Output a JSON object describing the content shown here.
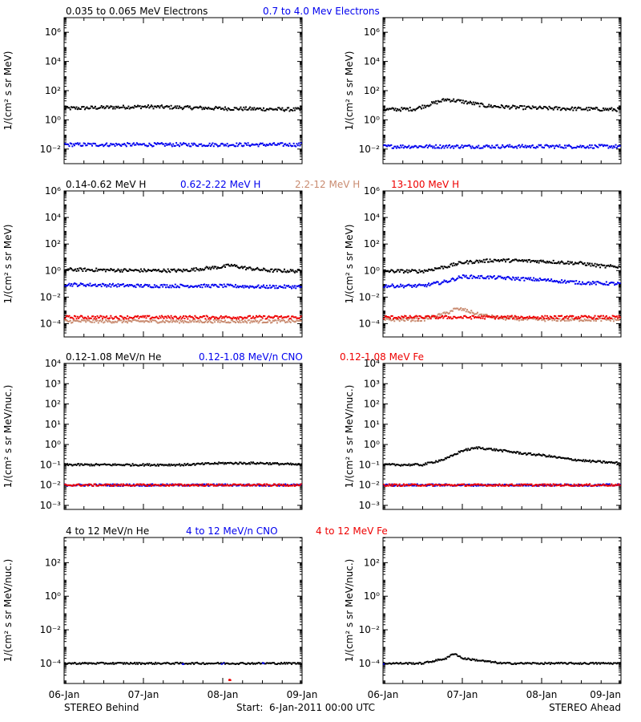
{
  "colors": {
    "black": "#000000",
    "blue": "#0000ee",
    "tan": "#c98b70",
    "red": "#ee0000"
  },
  "rows": [
    {
      "legend": [
        {
          "label": "0.035 to 0.065 MeV Electrons",
          "color": "#000000"
        },
        {
          "label": "0.7 to 4.0 Mev Electrons",
          "color": "#0000ee"
        }
      ],
      "ylabel": "1/(cm² s sr MeV)",
      "ylim_log10": [
        -3,
        7
      ],
      "ticks": [
        {
          "e": -2,
          "label": "10⁻²"
        },
        {
          "e": 0,
          "label": "10⁰"
        },
        {
          "e": 2,
          "label": "10²"
        },
        {
          "e": 4,
          "label": "10⁴"
        },
        {
          "e": 6,
          "label": "10⁶"
        }
      ]
    },
    {
      "legend": [
        {
          "label": "0.14-0.62 MeV H",
          "color": "#000000"
        },
        {
          "label": "0.62-2.22 MeV H",
          "color": "#0000ee"
        },
        {
          "label": "2.2-12 MeV H",
          "color": "#c98b70"
        },
        {
          "label": "13-100 MeV H",
          "color": "#ee0000"
        }
      ],
      "ylabel": "1/(cm² s sr MeV)",
      "ylim_log10": [
        -5,
        6
      ],
      "ticks": [
        {
          "e": -4,
          "label": "10⁻⁴"
        },
        {
          "e": -2,
          "label": "10⁻²"
        },
        {
          "e": 0,
          "label": "10⁰"
        },
        {
          "e": 2,
          "label": "10²"
        },
        {
          "e": 4,
          "label": "10⁴"
        },
        {
          "e": 6,
          "label": "10⁶"
        }
      ]
    },
    {
      "legend": [
        {
          "label": "0.12-1.08 MeV/n He",
          "color": "#000000"
        },
        {
          "label": "0.12-1.08 MeV/n CNO",
          "color": "#0000ee"
        },
        {
          "label": "0.12-1.08 MeV Fe",
          "color": "#ee0000"
        }
      ],
      "ylabel": "1/(cm² s sr MeV/nuc.)",
      "ylim_log10": [
        -3.2,
        4
      ],
      "ticks": [
        {
          "e": -3,
          "label": "10⁻³"
        },
        {
          "e": -2,
          "label": "10⁻²"
        },
        {
          "e": -1,
          "label": "10⁻¹"
        },
        {
          "e": 0,
          "label": "10⁰"
        },
        {
          "e": 1,
          "label": "10¹"
        },
        {
          "e": 2,
          "label": "10²"
        },
        {
          "e": 3,
          "label": "10³"
        },
        {
          "e": 4,
          "label": "10⁴"
        }
      ]
    },
    {
      "legend": [
        {
          "label": "4 to 12 MeV/n He",
          "color": "#000000"
        },
        {
          "label": "4 to 12 MeV/n CNO",
          "color": "#0000ee"
        },
        {
          "label": "4 to 12 MeV Fe",
          "color": "#ee0000"
        }
      ],
      "ylabel": "1/(cm² s sr MeV/nuc.)",
      "ylim_log10": [
        -5.2,
        3.5
      ],
      "ticks": [
        {
          "e": -4,
          "label": "10⁻⁴"
        },
        {
          "e": -2,
          "label": "10⁻²"
        },
        {
          "e": 0,
          "label": "10⁰"
        },
        {
          "e": 2,
          "label": "10²"
        }
      ]
    }
  ],
  "x_ticks": [
    "06-Jan",
    "07-Jan",
    "08-Jan",
    "09-Jan"
  ],
  "xlim_days": [
    0,
    3
  ],
  "footer": {
    "left": "STEREO Behind",
    "center": "Start:  6-Jan-2011 00:00 UTC",
    "right": "STEREO Ahead"
  },
  "chart_data": [
    {
      "type": "scatter",
      "panel": "electrons-behind",
      "x_unit": "days",
      "y_scale": "log",
      "ylim": [
        0.001,
        10000000
      ],
      "xlim": [
        0,
        3
      ],
      "series": [
        {
          "name": "0.035 to 0.065 MeV Electrons",
          "color": "#000000",
          "x": [
            0,
            0.5,
            1.0,
            1.5,
            2.0,
            2.5,
            3.0
          ],
          "y": [
            6,
            7,
            8,
            7,
            6,
            5.5,
            5
          ]
        },
        {
          "name": "0.7 to 4.0 Mev Electrons",
          "color": "#0000ee",
          "x": [
            0,
            0.5,
            1.0,
            1.5,
            2.0,
            2.5,
            3.0
          ],
          "y": [
            0.02,
            0.02,
            0.02,
            0.02,
            0.02,
            0.02,
            0.02
          ]
        }
      ]
    },
    {
      "type": "scatter",
      "panel": "electrons-ahead",
      "x_unit": "days",
      "y_scale": "log",
      "ylim": [
        0.001,
        10000000
      ],
      "xlim": [
        0,
        3
      ],
      "series": [
        {
          "name": "0.035 to 0.065 MeV Electrons",
          "color": "#000000",
          "x": [
            0,
            0.4,
            0.6,
            0.8,
            1.0,
            1.3,
            1.7,
            2.2,
            2.6,
            3.0
          ],
          "y": [
            5,
            5.5,
            12,
            25,
            18,
            9,
            7,
            6,
            5.5,
            5
          ]
        },
        {
          "name": "0.7 to 4.0 Mev Electrons",
          "color": "#0000ee",
          "x": [
            0,
            0.5,
            1.0,
            1.5,
            2.0,
            2.5,
            3.0
          ],
          "y": [
            0.015,
            0.015,
            0.015,
            0.015,
            0.015,
            0.015,
            0.015
          ]
        }
      ]
    },
    {
      "type": "scatter",
      "panel": "protons-behind",
      "x_unit": "days",
      "y_scale": "log",
      "ylim": [
        1e-05,
        1000000
      ],
      "xlim": [
        0,
        3
      ],
      "series": [
        {
          "name": "0.14-0.62 MeV H",
          "color": "#000000",
          "x": [
            0,
            0.5,
            1.0,
            1.5,
            1.8,
            2.0,
            2.1,
            2.3,
            2.6,
            3.0
          ],
          "y": [
            1.2,
            1.1,
            1.0,
            1.0,
            1.5,
            1.9,
            2.5,
            1.5,
            1.0,
            0.9
          ]
        },
        {
          "name": "0.62-2.22 MeV H",
          "color": "#0000ee",
          "x": [
            0,
            0.5,
            1.0,
            1.5,
            2.0,
            2.5,
            3.0
          ],
          "y": [
            0.09,
            0.08,
            0.07,
            0.07,
            0.07,
            0.06,
            0.06
          ]
        },
        {
          "name": "2.2-12 MeV H",
          "color": "#c98b70",
          "x": [
            0,
            0.5,
            1.0,
            1.5,
            2.0,
            2.5,
            3.0
          ],
          "y": [
            0.00015,
            0.00015,
            0.00015,
            0.00015,
            0.00015,
            0.00015,
            0.00015
          ]
        },
        {
          "name": "13-100 MeV H",
          "color": "#ee0000",
          "x": [
            0,
            0.5,
            1.0,
            1.5,
            2.0,
            2.5,
            3.0
          ],
          "y": [
            0.0003,
            0.0003,
            0.0003,
            0.0003,
            0.0003,
            0.0003,
            0.0003
          ]
        }
      ]
    },
    {
      "type": "scatter",
      "panel": "protons-ahead",
      "x_unit": "days",
      "y_scale": "log",
      "ylim": [
        1e-05,
        1000000
      ],
      "xlim": [
        0,
        3
      ],
      "series": [
        {
          "name": "0.14-0.62 MeV H",
          "color": "#000000",
          "x": [
            0,
            0.5,
            0.8,
            1.0,
            1.4,
            2.0,
            2.5,
            2.8,
            3.0
          ],
          "y": [
            0.9,
            0.9,
            2,
            4,
            6,
            5,
            3.5,
            2,
            2
          ]
        },
        {
          "name": "0.62-2.22 MeV H",
          "color": "#0000ee",
          "x": [
            0,
            0.5,
            0.8,
            1.0,
            1.4,
            2.0,
            2.5,
            3.0
          ],
          "y": [
            0.07,
            0.07,
            0.15,
            0.35,
            0.3,
            0.2,
            0.12,
            0.1
          ]
        },
        {
          "name": "2.2-12 MeV H",
          "color": "#c98b70",
          "x": [
            0,
            0.5,
            0.8,
            0.9,
            1.0,
            1.2,
            1.5,
            2.0,
            3.0
          ],
          "y": [
            0.0002,
            0.0002,
            0.0006,
            0.0012,
            0.0012,
            0.0005,
            0.00025,
            0.0002,
            0.0002
          ]
        },
        {
          "name": "13-100 MeV H",
          "color": "#ee0000",
          "x": [
            0,
            0.5,
            1.0,
            1.5,
            2.0,
            2.5,
            3.0
          ],
          "y": [
            0.0003,
            0.0003,
            0.0003,
            0.0003,
            0.0003,
            0.0003,
            0.0003
          ]
        }
      ]
    },
    {
      "type": "scatter",
      "panel": "low-energy-ions-behind",
      "x_unit": "days",
      "y_scale": "log",
      "ylim": [
        0.00063,
        10000
      ],
      "xlim": [
        0,
        3
      ],
      "series": [
        {
          "name": "0.12-1.08 MeV/n He",
          "color": "#000000",
          "x": [
            0,
            0.5,
            1.0,
            1.5,
            2.0,
            2.5,
            3.0
          ],
          "y": [
            0.1,
            0.1,
            0.1,
            0.1,
            0.12,
            0.12,
            0.1
          ]
        },
        {
          "name": "0.12-1.08 MeV/n CNO",
          "color": "#0000ee",
          "x": [
            0,
            0.5,
            1.0,
            1.5,
            2.0,
            2.5,
            3.0
          ],
          "y": [
            0.01,
            0.01,
            0.01,
            0.01,
            0.01,
            0.01,
            0.01
          ]
        },
        {
          "name": "0.12-1.08 MeV Fe",
          "color": "#ee0000",
          "x": [
            0,
            0.5,
            1.0,
            1.5,
            2.0,
            2.5,
            3.0
          ],
          "y": [
            0.01,
            0.01,
            0.01,
            0.01,
            0.01,
            0.01,
            0.01
          ]
        }
      ]
    },
    {
      "type": "scatter",
      "panel": "low-energy-ions-ahead",
      "x_unit": "days",
      "y_scale": "log",
      "ylim": [
        0.00063,
        10000
      ],
      "xlim": [
        0,
        3
      ],
      "series": [
        {
          "name": "0.12-1.08 MeV/n He",
          "color": "#000000",
          "x": [
            0,
            0.5,
            0.8,
            1.0,
            1.2,
            1.5,
            1.8,
            2.0,
            2.3,
            2.6,
            3.0
          ],
          "y": [
            0.1,
            0.1,
            0.2,
            0.5,
            0.7,
            0.5,
            0.35,
            0.3,
            0.2,
            0.15,
            0.12
          ]
        },
        {
          "name": "0.12-1.08 MeV/n CNO",
          "color": "#0000ee",
          "x": [
            0,
            0.5,
            1.0,
            1.5,
            2.0,
            2.5,
            3.0
          ],
          "y": [
            0.01,
            0.01,
            0.01,
            0.01,
            0.01,
            0.01,
            0.01
          ]
        },
        {
          "name": "0.12-1.08 MeV Fe",
          "color": "#ee0000",
          "x": [
            0,
            0.5,
            1.0,
            1.5,
            2.0,
            2.5,
            3.0
          ],
          "y": [
            0.01,
            0.01,
            0.01,
            0.01,
            0.01,
            0.01,
            0.01
          ]
        }
      ]
    },
    {
      "type": "scatter",
      "panel": "high-energy-ions-behind",
      "x_unit": "days",
      "y_scale": "log",
      "ylim": [
        6.3e-06,
        3162
      ],
      "xlim": [
        0,
        3
      ],
      "series": [
        {
          "name": "4 to 12 MeV/n He",
          "color": "#000000",
          "x": [
            0,
            0.5,
            1.0,
            1.5,
            2.0,
            2.5,
            3.0
          ],
          "y": [
            0.0001,
            0.0001,
            0.0001,
            0.0001,
            0.0001,
            0.0001,
            0.0001
          ]
        },
        {
          "name": "4 to 12 MeV/n CNO",
          "color": "#0000ee",
          "x": [
            1.5,
            2.0,
            2.5
          ],
          "y": [
            0.0001,
            0.0001,
            0.0001
          ]
        },
        {
          "name": "4 to 12 MeV Fe",
          "color": "#ee0000",
          "x": [
            2.1
          ],
          "y": [
            1e-05
          ]
        }
      ]
    },
    {
      "type": "scatter",
      "panel": "high-energy-ions-ahead",
      "x_unit": "days",
      "y_scale": "log",
      "ylim": [
        6.3e-06,
        3162
      ],
      "xlim": [
        0,
        3
      ],
      "series": [
        {
          "name": "4 to 12 MeV/n He",
          "color": "#000000",
          "x": [
            0,
            0.5,
            0.8,
            0.9,
            1.0,
            1.5,
            2.0,
            2.5,
            3.0
          ],
          "y": [
            0.0001,
            0.0001,
            0.0002,
            0.0004,
            0.0002,
            0.0001,
            0.0001,
            0.0001,
            0.0001
          ]
        },
        {
          "name": "4 to 12 MeV/n CNO",
          "color": "#0000ee",
          "x": [
            0,
            3.0
          ],
          "y": [
            0.0001,
            0.0001
          ]
        },
        {
          "name": "4 to 12 MeV Fe",
          "color": "#ee0000",
          "x": [],
          "y": []
        }
      ]
    }
  ]
}
